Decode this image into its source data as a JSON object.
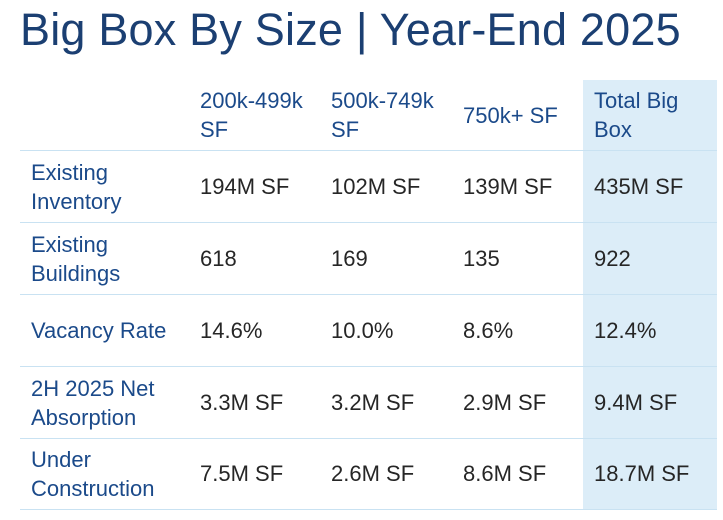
{
  "title": "Big Box By Size | Year-End 2025",
  "columns": [
    "200k-499k SF",
    "500k-749k SF",
    "750k+ SF",
    "Total Big Box"
  ],
  "rows": [
    {
      "label": "Existing Inventory",
      "values": [
        "194M SF",
        "102M SF",
        "139M SF",
        "435M SF"
      ]
    },
    {
      "label": "Existing Buildings",
      "values": [
        "618",
        "169",
        "135",
        "922"
      ]
    },
    {
      "label": "Vacancy Rate",
      "values": [
        "14.6%",
        "10.0%",
        "8.6%",
        "12.4%"
      ]
    },
    {
      "label": "2H 2025 Net Absorption",
      "values": [
        "3.3M SF",
        "3.2M SF",
        "2.9M SF",
        "9.4M SF"
      ]
    },
    {
      "label": "Under Construction",
      "values": [
        "7.5M SF",
        "2.6M SF",
        "8.6M SF",
        "18.7M SF"
      ]
    }
  ],
  "colors": {
    "title": "#1b3f72",
    "header_text": "#1b4a8a",
    "row_label": "#1b4a8a",
    "value_text": "#262626",
    "total_column_bg": "#dcedf8",
    "row_divider": "#c9e2f2"
  }
}
